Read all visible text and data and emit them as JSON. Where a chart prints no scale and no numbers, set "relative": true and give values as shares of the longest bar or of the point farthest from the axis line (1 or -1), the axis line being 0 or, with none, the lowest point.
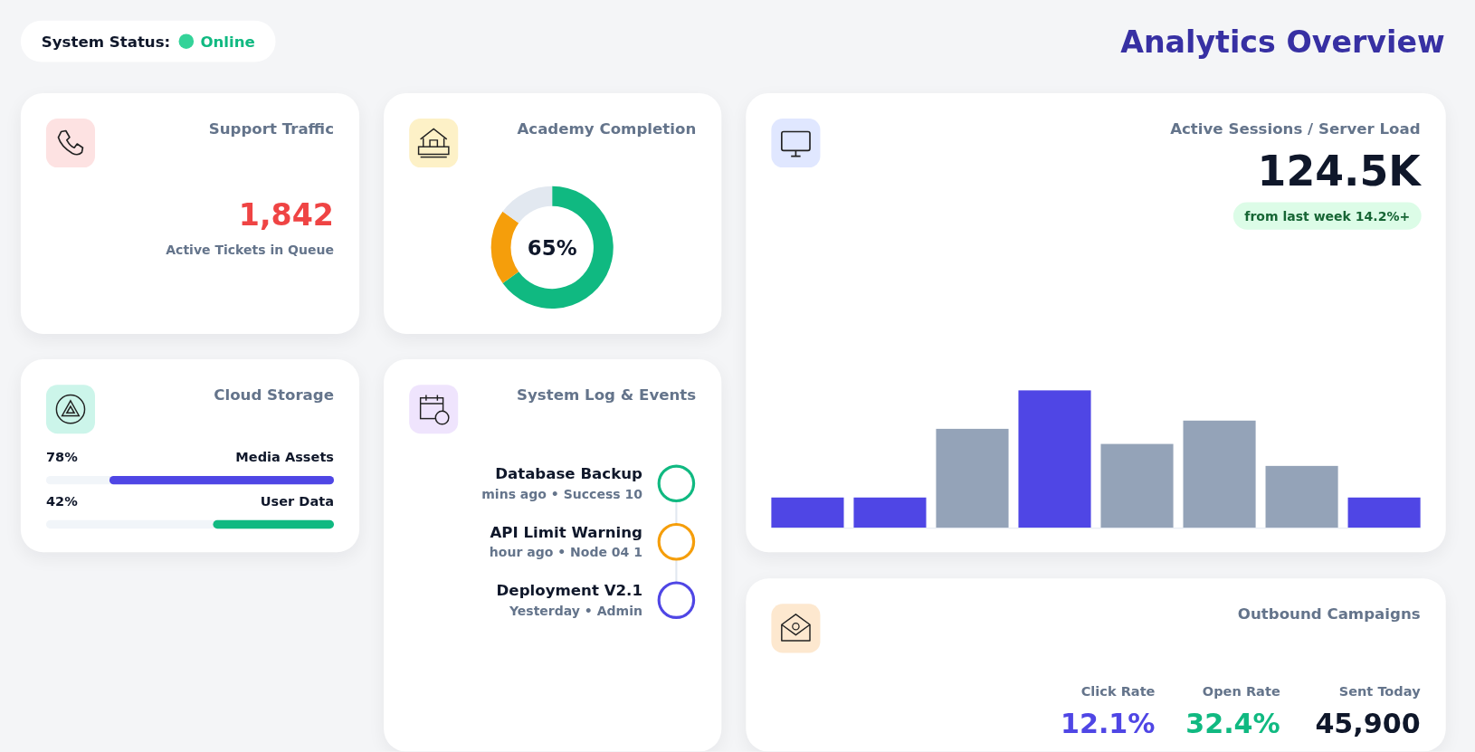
{
  "chart_data": [
    {
      "type": "other",
      "title": "Analytics Overview",
      "annotations": [
        "System Status:",
        "Online"
      ]
    },
    {
      "type": "other",
      "title": "Support Traffic",
      "annotations": [
        "1,842",
        "Active Tickets in Queue"
      ]
    },
    {
      "type": "donut",
      "title": "Academy Completion",
      "categories": [
        null,
        null,
        null
      ],
      "values": [
        65,
        20,
        15
      ],
      "colors": [
        "#10b981",
        "#f59e0b",
        "#e2e8f0"
      ],
      "value_labels": [
        "65%",
        null,
        null
      ]
    },
    {
      "type": "bar",
      "title": "Active Sessions / Server Load",
      "subtitle": "124.5K",
      "annotations": [
        "from last week 14.2%+"
      ],
      "categories": [
        null,
        null,
        null,
        null,
        null,
        null,
        null,
        null
      ],
      "values": [
        0.22,
        0.22,
        0.72,
        1,
        0.61,
        0.78,
        0.45,
        0.22
      ],
      "colors": [
        "#4f46e5",
        "#4f46e5",
        "#94a3b8",
        "#4f46e5",
        "#94a3b8",
        "#94a3b8",
        "#94a3b8",
        "#4f46e5"
      ],
      "relative": true
    },
    {
      "type": "bar",
      "orientation": "horizontal",
      "title": "Cloud Storage",
      "categories": [
        "Media Assets",
        "User Data"
      ],
      "values": [
        78,
        42
      ],
      "colors": [
        "#4f46e5",
        "#10b981"
      ],
      "value_labels": [
        "78%",
        "42%"
      ],
      "xlim": [
        100,
        0
      ],
      "tick_labels": "y"
    },
    {
      "type": "other",
      "title": "System Log & Events",
      "annotations": [
        "Database Backup",
        "mins ago • Success 10",
        "API Limit Warning",
        "hour ago • Node 04 1",
        "Deployment V2.1",
        "Yesterday • Admin"
      ]
    },
    {
      "type": "other",
      "title": "Outbound Campaigns",
      "annotations": [
        "Click Rate",
        "12.1%",
        "Open Rate",
        "32.4%",
        "Sent Today",
        "45,900"
      ]
    }
  ]
}
